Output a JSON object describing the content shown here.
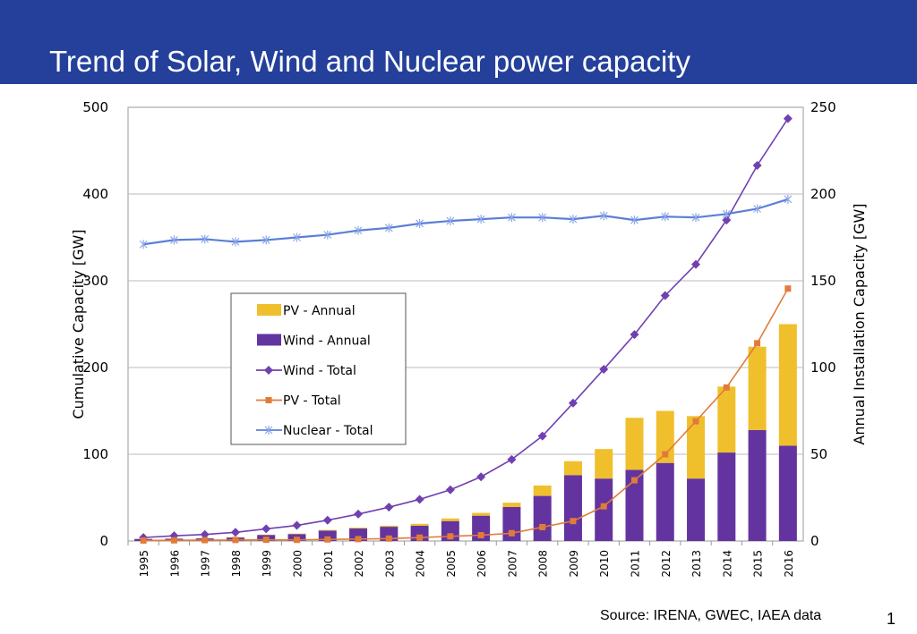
{
  "header": {
    "title": "Trend of Solar, Wind and Nuclear power capacity",
    "bg_color": "#24409a"
  },
  "footer": {
    "source": "Source: IRENA, GWEC, IAEA data",
    "page_number": "1"
  },
  "chart_data": {
    "type": "bar+line",
    "categories": [
      "1995",
      "1996",
      "1997",
      "1998",
      "1999",
      "2000",
      "2001",
      "2002",
      "2003",
      "2004",
      "2005",
      "2006",
      "2007",
      "2008",
      "2009",
      "2010",
      "2011",
      "2012",
      "2013",
      "2014",
      "2015",
      "2016"
    ],
    "ylabel_left": "Cumulative Capacity [GW]",
    "ylabel_right": "Annual Installation Capacity [GW]",
    "ylim_left": [
      0,
      500
    ],
    "yticks_left": [
      "0",
      "100",
      "200",
      "300",
      "400",
      "500"
    ],
    "ylim_right": [
      0,
      250
    ],
    "yticks_right": [
      "0",
      "50",
      "100",
      "150",
      "200",
      "250"
    ],
    "grid": true,
    "legend_placement": "center-left",
    "series": [
      {
        "name": "PV - Annual",
        "type": "stacked-bar",
        "axis": "right",
        "color": "#f0bf2c",
        "values": [
          0.1,
          0.1,
          0.1,
          0.2,
          0.2,
          0.3,
          0.4,
          0.5,
          0.6,
          1.1,
          1.5,
          1.6,
          2.5,
          6,
          8,
          17,
          30,
          30,
          36,
          38,
          48,
          70
        ]
      },
      {
        "name": "Wind - Annual",
        "type": "stacked-bar",
        "axis": "right",
        "color": "#6334a0",
        "values": [
          1.2,
          1.3,
          1.5,
          2,
          3.5,
          4,
          6,
          7.2,
          8.2,
          8.8,
          11.5,
          14.6,
          19.6,
          26,
          38,
          36,
          41,
          45,
          36,
          51,
          64,
          55
        ]
      },
      {
        "name": "Wind - Total",
        "type": "line",
        "axis": "left",
        "color": "#7040b0",
        "marker": "diamond",
        "values": [
          4,
          6,
          7.5,
          10,
          14,
          18,
          24,
          31,
          39,
          48,
          59,
          74,
          94,
          121,
          159,
          198,
          238,
          283,
          319,
          370,
          433,
          487
        ]
      },
      {
        "name": "PV - Total",
        "type": "line",
        "axis": "left",
        "color": "#e07b39",
        "marker": "square",
        "values": [
          0.6,
          0.8,
          1,
          1.2,
          1.4,
          1.3,
          1.8,
          2.2,
          2.8,
          3.9,
          5.4,
          6.7,
          9,
          16,
          23,
          40,
          70,
          100,
          138,
          177,
          228,
          291
        ]
      },
      {
        "name": "Nuclear - Total",
        "type": "line",
        "axis": "left",
        "color": "#5b7fd6",
        "marker": "star",
        "values": [
          342,
          347,
          348,
          345,
          347,
          350,
          353,
          358,
          361,
          366,
          369,
          371,
          373,
          373,
          371,
          375,
          370,
          374,
          373,
          377,
          383,
          394
        ]
      }
    ]
  }
}
